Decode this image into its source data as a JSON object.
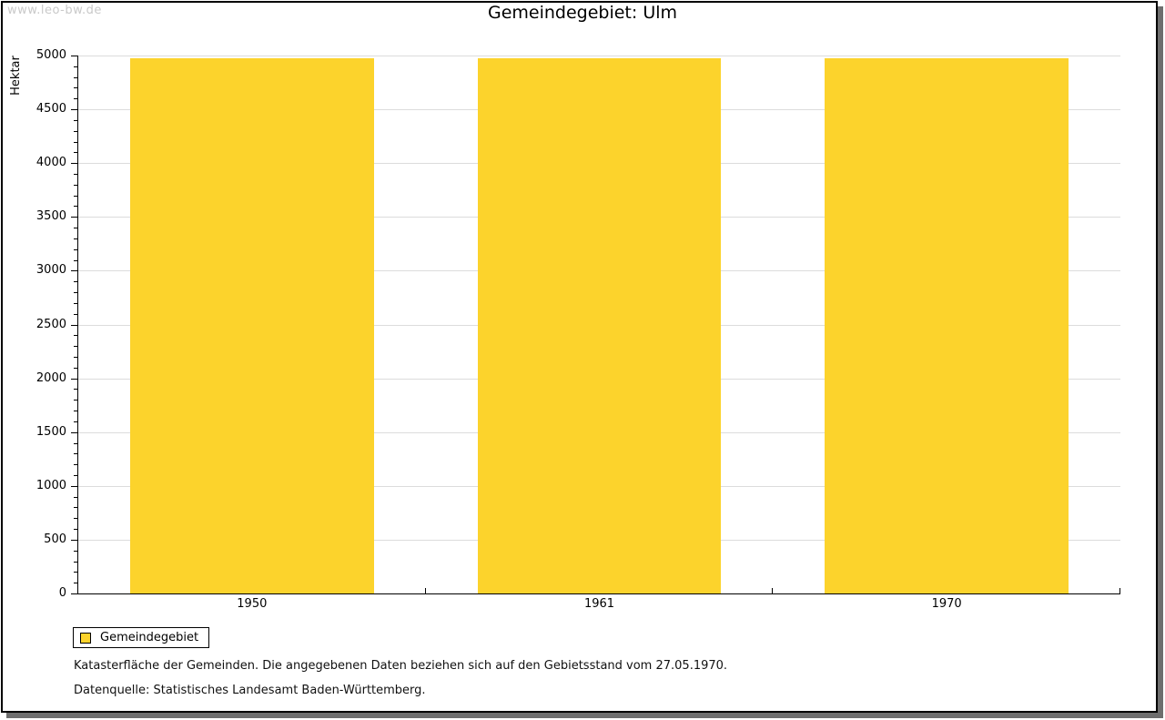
{
  "watermark": "www.leo-bw.de",
  "title": "Gemeindegebiet: Ulm",
  "chart_data": {
    "type": "bar",
    "title": "Gemeindegebiet: Ulm",
    "categories": [
      "1950",
      "1961",
      "1970"
    ],
    "series": [
      {
        "name": "Gemeindegebiet",
        "values": [
          4975,
          4975,
          4975
        ]
      }
    ],
    "xlabel": "",
    "ylabel": "Hektar",
    "ylim": [
      0,
      5000
    ],
    "yticks": [
      0,
      500,
      1000,
      1500,
      2000,
      2500,
      3000,
      3500,
      4000,
      4500,
      5000
    ],
    "minor_tick_step": 100,
    "grid": "horizontal-major-only",
    "legend_position": "bottom-left",
    "bar_color": "#fcd32c"
  },
  "legend": {
    "items": [
      {
        "label": "Gemeindegebiet",
        "color": "#fcd32c"
      }
    ]
  },
  "footnotes": [
    "Katasterfläche der Gemeinden. Die angegebenen Daten beziehen sich auf den Gebietsstand vom 27.05.1970.",
    "Datenquelle: Statistisches Landesamt Baden-Württemberg."
  ],
  "colors": {
    "bar": "#fcd32c",
    "gridline": "#dcdcdc",
    "axis": "#000000",
    "watermark": "#c9c9c9",
    "frame_shadow": "#6e6e6e",
    "background": "#ffffff"
  }
}
